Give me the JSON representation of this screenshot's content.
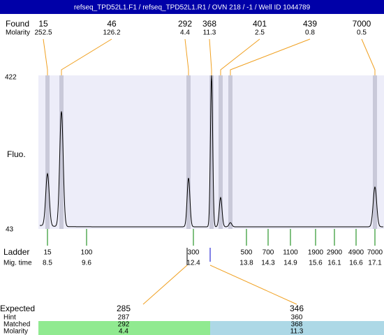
{
  "chart_data": {
    "type": "electropherogram",
    "title": "refseq_TPD52L1.F1 / refseq_TPD52L1.R1 / OVN 218 / -1 / Well ID 1044789",
    "found_label": "Found",
    "molarity_label": "Molarity",
    "y_axis_label": "Fluo.",
    "yticks": [
      422,
      43
    ],
    "found": {
      "sizes": [
        15,
        46,
        292,
        368,
        401,
        439,
        7000
      ],
      "molarity": [
        252.5,
        126.2,
        4.4,
        11.3,
        2.5,
        0.8,
        0.5
      ]
    },
    "ladder_label": "Ladder",
    "mig_time_label": "Mig. time",
    "ladder": {
      "sizes": [
        15,
        100,
        300,
        500,
        700,
        1100,
        1900,
        2900,
        4900,
        7000
      ],
      "mig_times": [
        8.5,
        9.6,
        12.4,
        13.8,
        14.3,
        14.9,
        15.6,
        16.1,
        16.6,
        17.1
      ]
    },
    "expected_label": "Expected",
    "hint_label": "Hint",
    "matched_label": "Matched",
    "matched_molarity_label": "Molarity",
    "expected": [
      285,
      346
    ],
    "hint": [
      287,
      360
    ],
    "matched": [
      292,
      368
    ],
    "matched_molarity": [
      4.4,
      11.3
    ]
  }
}
